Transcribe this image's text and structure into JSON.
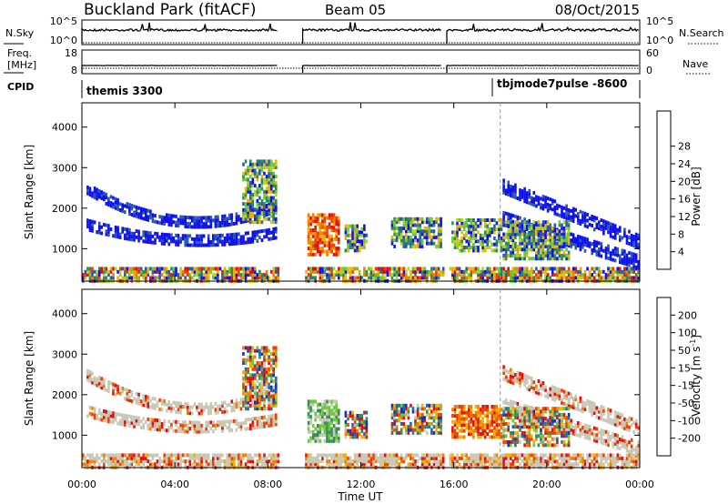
{
  "header": {
    "title": "Buckland Park (fitACF)",
    "beam": "Beam 05",
    "date": "08/Oct/2015"
  },
  "strips": {
    "nsky": {
      "label": "N.Sky",
      "left_ticks": [
        "10^5",
        "10^0"
      ],
      "right_label": "N.Search",
      "right_ticks": [
        "10^5",
        "10^0"
      ]
    },
    "freq": {
      "label_line1": "Freq.",
      "label_line2": "[MHz]",
      "left_ticks": [
        "18",
        "8"
      ],
      "right_label": "Nave",
      "right_ticks": [
        "60",
        "0"
      ]
    },
    "cpid": {
      "label": "CPID",
      "segments": [
        {
          "text": "themis 3300",
          "start_h": 0
        },
        {
          "text": "tbjmode7pulse -8600",
          "start_h": 18
        }
      ]
    }
  },
  "chart_data": [
    {
      "type": "heatmap",
      "name": "power",
      "ylabel": "Slant Range [km]",
      "y_ticks": [
        "1000",
        "2000",
        "3000",
        "4000"
      ],
      "ylim": [
        200,
        4600
      ],
      "xlim": [
        0,
        24
      ],
      "x_ticks": [
        "00:00",
        "04:00",
        "08:00",
        "12:00",
        "16:00",
        "20:00",
        "00:00"
      ],
      "colorbar": {
        "label": "Power [dB]",
        "ticks": [
          "4",
          "8",
          "12",
          "16",
          "20",
          "24",
          "28"
        ],
        "colors": [
          "#1010f0",
          "#2a5aa8",
          "#2a8a5a",
          "#66cc33",
          "#c0d020",
          "#f0b000",
          "#f08000",
          "#f04000",
          "#e01010"
        ]
      },
      "data_gaps_h": [
        [
          8.4,
          9.5
        ],
        [
          15.5,
          15.7
        ]
      ]
    },
    {
      "type": "heatmap",
      "name": "velocity",
      "ylabel": "Slant Range [km]",
      "y_ticks": [
        "1000",
        "2000",
        "3000",
        "4000"
      ],
      "ylim": [
        200,
        4600
      ],
      "xlim": [
        0,
        24
      ],
      "x_ticks": [
        "00:00",
        "04:00",
        "08:00",
        "12:00",
        "16:00",
        "20:00",
        "00:00"
      ],
      "xlabel": "Time UT",
      "colorbar": {
        "label_main": "Velocity [m s",
        "label_sup": "-1",
        "label_end": "]",
        "ticks": [
          "200",
          "100",
          "50",
          "15",
          "-15",
          "-50",
          "-100",
          "-200"
        ],
        "colors": [
          "#2030b0",
          "#1c6ab0",
          "#3a8a5a",
          "#66cc33",
          "#c8c8b8",
          "#f0b000",
          "#f08000",
          "#f04000",
          "#e01010"
        ]
      },
      "data_gaps_h": [
        [
          8.4,
          9.5
        ],
        [
          15.5,
          15.7
        ]
      ]
    }
  ]
}
